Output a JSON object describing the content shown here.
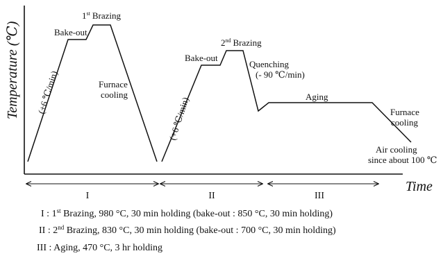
{
  "axes": {
    "y_label": "Temperature (℃)",
    "x_label": "Time"
  },
  "cycle1": {
    "ramp_rate": "(+6 ℃/min)",
    "bakeout": "Bake-out",
    "brazing_num": "1",
    "brazing_sup": "st",
    "brazing_word": "Brazing",
    "furnace_cooling_1": "Furnace",
    "furnace_cooling_2": "cooling"
  },
  "cycle2": {
    "ramp_rate": "(+6 ℃/min)",
    "bakeout": "Bake-out",
    "brazing_num": "2",
    "brazing_sup": "nd",
    "brazing_word": "Brazing",
    "quenching_1": "Quenching",
    "quenching_2": "(- 90 ℃/min)",
    "aging": "Aging",
    "furnace_cooling_1": "Furnace",
    "furnace_cooling_2": "cooling",
    "air_cooling_1": "Air cooling",
    "air_cooling_2": "since about 100 ℃"
  },
  "phases": [
    "I",
    "II",
    "III"
  ],
  "legend": [
    {
      "id": "I",
      "num": "1",
      "sup": "st",
      "text": " Brazing, 980 °C, 30 min holding (bake-out : 850 °C, 30 min holding)"
    },
    {
      "id": "II",
      "num": "2",
      "sup": "nd",
      "text": " Brazing, 830 °C, 30 min holding (bake-out : 700 °C, 30 min holding)"
    },
    {
      "id": "III",
      "num": "",
      "sup": "",
      "text": "Aging, 470 °C, 3 hr holding"
    }
  ]
}
